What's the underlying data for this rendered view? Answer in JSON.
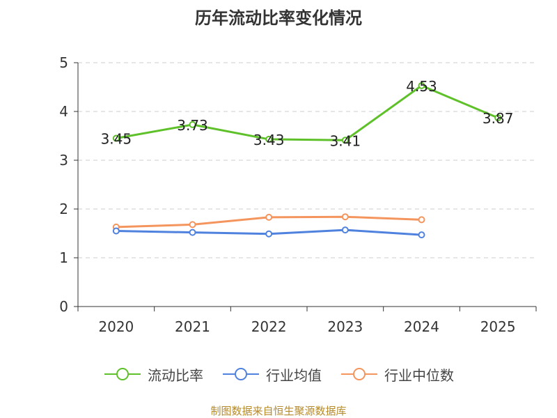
{
  "chart_data": {
    "type": "line",
    "title": "历年流动比率变化情况",
    "categories": [
      "2020",
      "2021",
      "2022",
      "2023",
      "2024",
      "2025"
    ],
    "ylim": [
      0,
      5
    ],
    "yticks": [
      "0",
      "1",
      "2",
      "3",
      "4",
      "5"
    ],
    "grid": true,
    "legend_position": "bottom",
    "series": [
      {
        "name": "流动比率",
        "color": "#5fc12a",
        "values": [
          3.45,
          3.73,
          3.43,
          3.41,
          4.53,
          3.87
        ],
        "labels": [
          "3.45",
          "3.73",
          "3.43",
          "3.41",
          "4.53",
          "3.87"
        ],
        "show_labels": true
      },
      {
        "name": "行业均值",
        "color": "#4f82de",
        "values": [
          1.55,
          1.52,
          1.49,
          1.57,
          1.47,
          null
        ],
        "show_labels": false
      },
      {
        "name": "行业中位数",
        "color": "#f5955e",
        "values": [
          1.63,
          1.68,
          1.83,
          1.84,
          1.78,
          null
        ],
        "show_labels": false
      }
    ]
  },
  "footer": "制图数据来自恒生聚源数据库"
}
